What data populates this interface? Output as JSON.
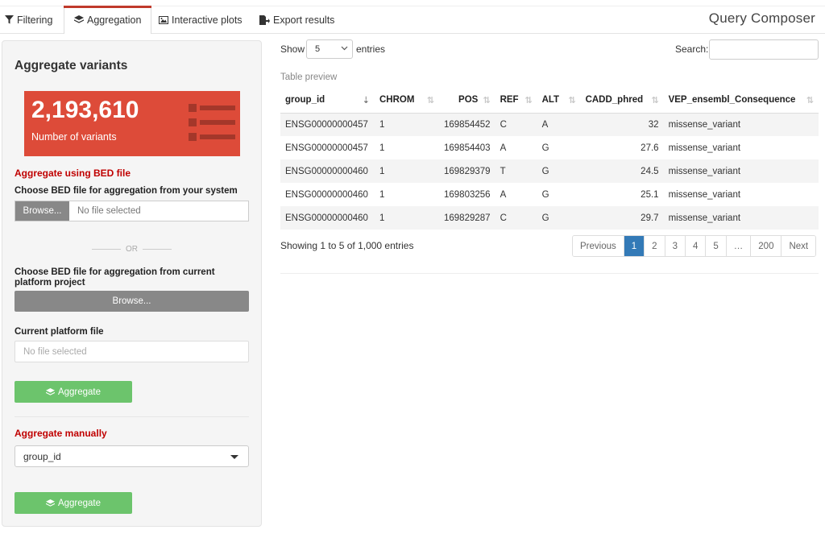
{
  "nav": {
    "tabs": [
      {
        "label": "Filtering",
        "icon": "filter-icon"
      },
      {
        "label": "Aggregation",
        "icon": "layers-icon"
      },
      {
        "label": "Interactive plots",
        "icon": "image-icon"
      },
      {
        "label": "Export results",
        "icon": "file-export-icon"
      }
    ],
    "active_tab": "Aggregation",
    "brand": "Query Composer"
  },
  "sidebar": {
    "title": "Aggregate variants",
    "valuebox": {
      "value": "2,193,610",
      "label": "Number of variants",
      "color": "#dd4b39",
      "icon": "list-icon"
    },
    "bed_section": "Aggregate using BED file",
    "bed_local_label": "Choose BED file for aggregation from your system",
    "bed_local_button": "Browse...",
    "bed_local_placeholder": "No file selected",
    "or_text": "OR",
    "bed_platform_label": "Choose BED file for aggregation from current platform project",
    "bed_platform_button": "Browse...",
    "current_file_label": "Current platform file",
    "current_file_placeholder": "No file selected",
    "aggregate_button": "Aggregate",
    "manual_section": "Aggregate manually",
    "manual_select_value": "group_id",
    "manual_button": "Aggregate",
    "accent_green": "#6cc46c",
    "accent_red": "#c00000"
  },
  "table": {
    "show_label": "Show",
    "show_value": "5",
    "entries_label": "entries",
    "search_label": "Search:",
    "caption": "Table preview",
    "columns": [
      "group_id",
      "CHROM",
      "POS",
      "REF",
      "ALT",
      "CADD_phred",
      "VEP_ensembl_Consequence"
    ],
    "rows": [
      [
        "ENSG00000000457",
        "1",
        "169854452",
        "C",
        "A",
        "32",
        "missense_variant"
      ],
      [
        "ENSG00000000457",
        "1",
        "169854403",
        "A",
        "G",
        "27.6",
        "missense_variant"
      ],
      [
        "ENSG00000000460",
        "1",
        "169829379",
        "T",
        "G",
        "24.5",
        "missense_variant"
      ],
      [
        "ENSG00000000460",
        "1",
        "169803256",
        "A",
        "G",
        "25.1",
        "missense_variant"
      ],
      [
        "ENSG00000000460",
        "1",
        "169829287",
        "C",
        "G",
        "29.7",
        "missense_variant"
      ]
    ],
    "info": "Showing 1 to 5 of 1,000 entries",
    "pagination": [
      "Previous",
      "1",
      "2",
      "3",
      "4",
      "5",
      "…",
      "200",
      "Next"
    ],
    "current_page": "1"
  }
}
